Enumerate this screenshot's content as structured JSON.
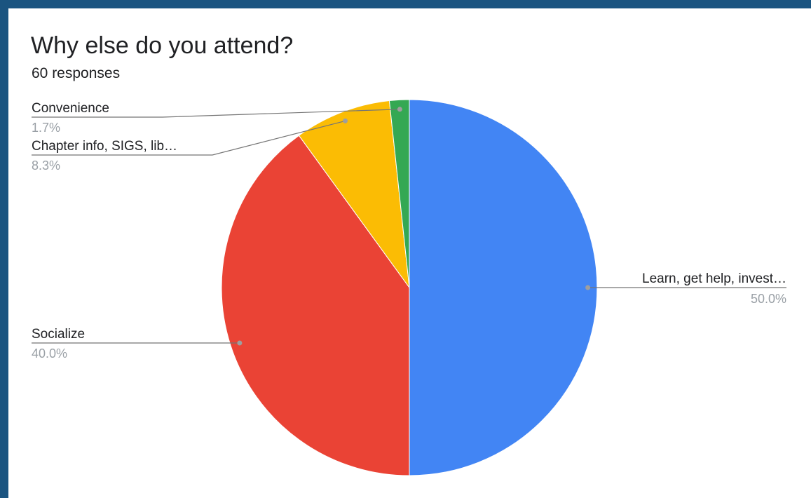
{
  "title": "Why else do you attend?",
  "subtitle": "60 responses",
  "chart_data": {
    "type": "pie",
    "start_angle_deg": 0,
    "direction": "clockwise",
    "slices": [
      {
        "label": "Learn, get help, invest…",
        "value": 50.0,
        "pct_label": "50.0%",
        "color": "#4285f4"
      },
      {
        "label": "Socialize",
        "value": 40.0,
        "pct_label": "40.0%",
        "color": "#ea4335"
      },
      {
        "label": "Chapter info, SIGS, lib…",
        "value": 8.3,
        "pct_label": "8.3%",
        "color": "#fbbc04"
      },
      {
        "label": "Convenience",
        "value": 1.7,
        "pct_label": "1.7%",
        "color": "#34a853"
      }
    ]
  }
}
